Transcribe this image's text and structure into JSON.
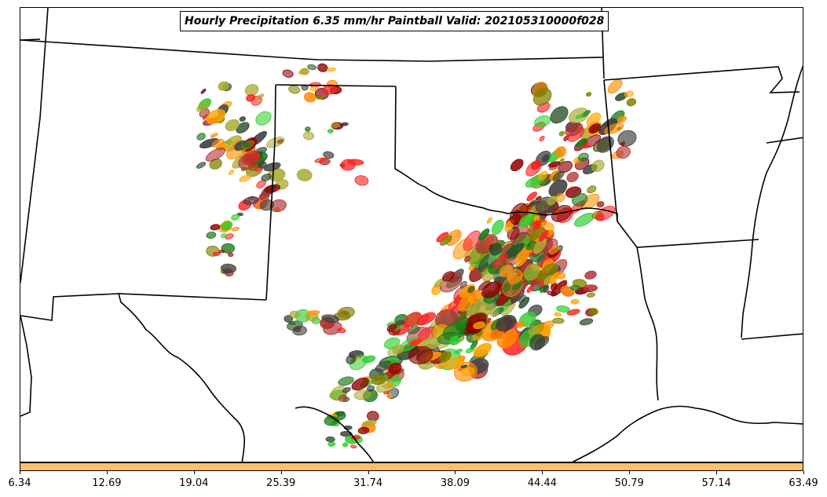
{
  "title": "Hourly Precipitation 6.35 mm/hr Paintball Valid: 202105310000f028",
  "colorbar": {
    "color": "#fdbf6f",
    "ticks": [
      "6.34",
      "12.69",
      "19.04",
      "25.39",
      "31.74",
      "38.09",
      "44.44",
      "50.79",
      "57.14",
      "63.49"
    ]
  },
  "member_colors": [
    "#8b0000",
    "#ff2020",
    "#ff8c00",
    "#ffa500",
    "#32cd32",
    "#1a7a1a",
    "#808000",
    "#a8a832",
    "#2f4f2f",
    "#404040",
    "#b03030"
  ],
  "boundary_color": "#000000"
}
